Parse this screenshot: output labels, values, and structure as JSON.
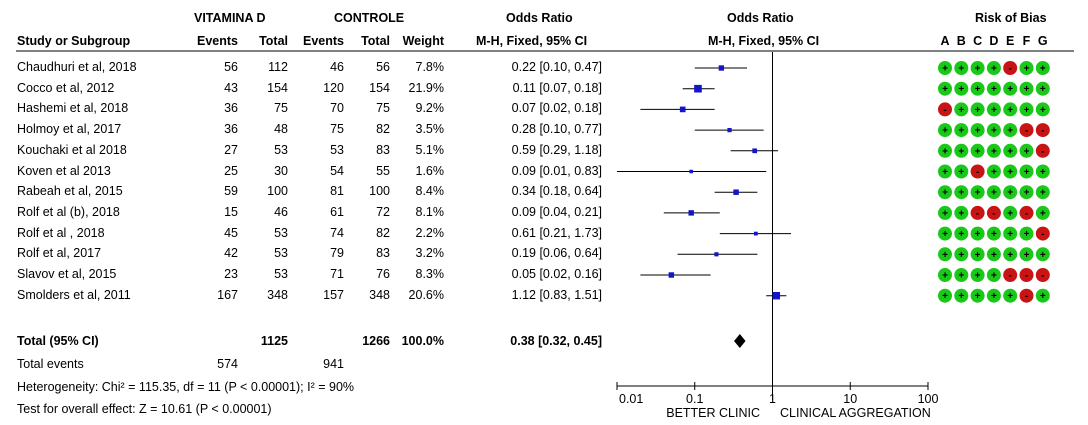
{
  "headers": {
    "group1": "VITAMINA D",
    "group2": "CONTROLE",
    "or_left": "Odds Ratio",
    "or_right": "Odds Ratio",
    "rob": "Risk of Bias",
    "study": "Study or Subgroup",
    "events1": "Events",
    "total1": "Total",
    "events2": "Events",
    "total2": "Total",
    "weight": "Weight",
    "method_left": "M-H, Fixed, 95% CI",
    "method_right": "M-H, Fixed, 95% CI",
    "rob_letters": [
      "A",
      "B",
      "C",
      "D",
      "E",
      "F",
      "G"
    ]
  },
  "studies": [
    {
      "name": "Chaudhuri et al, 2018",
      "e1": "56",
      "t1": "112",
      "e2": "46",
      "t2": "56",
      "weight": "7.8%",
      "ci_text": "0.22 [0.10, 0.47]",
      "or": 0.22,
      "lo": 0.1,
      "hi": 0.47,
      "w": 7.8,
      "rob": [
        "+",
        "+",
        "+",
        "+",
        "-",
        "+",
        "+"
      ]
    },
    {
      "name": "Cocco et al, 2012",
      "e1": "43",
      "t1": "154",
      "e2": "120",
      "t2": "154",
      "weight": "21.9%",
      "ci_text": "0.11 [0.07, 0.18]",
      "or": 0.11,
      "lo": 0.07,
      "hi": 0.18,
      "w": 21.9,
      "rob": [
        "+",
        "+",
        "+",
        "+",
        "+",
        "+",
        "+"
      ]
    },
    {
      "name": "Hashemi et al, 2018",
      "e1": "36",
      "t1": "75",
      "e2": "70",
      "t2": "75",
      "weight": "9.2%",
      "ci_text": "0.07 [0.02, 0.18]",
      "or": 0.07,
      "lo": 0.02,
      "hi": 0.18,
      "w": 9.2,
      "rob": [
        "-",
        "+",
        "+",
        "+",
        "+",
        "+",
        "+"
      ]
    },
    {
      "name": "Holmoy et al, 2017",
      "e1": "36",
      "t1": "48",
      "e2": "75",
      "t2": "82",
      "weight": "3.5%",
      "ci_text": "0.28 [0.10, 0.77]",
      "or": 0.28,
      "lo": 0.1,
      "hi": 0.77,
      "w": 3.5,
      "rob": [
        "+",
        "+",
        "+",
        "+",
        "+",
        "-",
        "-"
      ]
    },
    {
      "name": "Kouchaki et al  2018",
      "e1": "27",
      "t1": "53",
      "e2": "53",
      "t2": "83",
      "weight": "5.1%",
      "ci_text": "0.59 [0.29, 1.18]",
      "or": 0.59,
      "lo": 0.29,
      "hi": 1.18,
      "w": 5.1,
      "rob": [
        "+",
        "+",
        "+",
        "+",
        "+",
        "+",
        "-"
      ]
    },
    {
      "name": "Koven et al  2013",
      "e1": "25",
      "t1": "30",
      "e2": "54",
      "t2": "55",
      "weight": "1.6%",
      "ci_text": "0.09 [0.01, 0.83]",
      "or": 0.09,
      "lo": 0.01,
      "hi": 0.83,
      "w": 1.6,
      "rob": [
        "+",
        "+",
        "-",
        "+",
        "+",
        "+",
        "+"
      ]
    },
    {
      "name": "Rabeah  et al, 2015",
      "e1": "59",
      "t1": "100",
      "e2": "81",
      "t2": "100",
      "weight": "8.4%",
      "ci_text": "0.34 [0.18, 0.64]",
      "or": 0.34,
      "lo": 0.18,
      "hi": 0.64,
      "w": 8.4,
      "rob": [
        "+",
        "+",
        "+",
        "+",
        "+",
        "+",
        "+"
      ]
    },
    {
      "name": "Rolf et al (b), 2018",
      "e1": "15",
      "t1": "46",
      "e2": "61",
      "t2": "72",
      "weight": "8.1%",
      "ci_text": "0.09 [0.04, 0.21]",
      "or": 0.09,
      "lo": 0.04,
      "hi": 0.21,
      "w": 8.1,
      "rob": [
        "+",
        "+",
        "-",
        "-",
        "+",
        "-",
        "+"
      ]
    },
    {
      "name": "Rolf et al , 2018",
      "e1": "45",
      "t1": "53",
      "e2": "74",
      "t2": "82",
      "weight": "2.2%",
      "ci_text": "0.61 [0.21, 1.73]",
      "or": 0.61,
      "lo": 0.21,
      "hi": 1.73,
      "w": 2.2,
      "rob": [
        "+",
        "+",
        "+",
        "+",
        "+",
        "+",
        "-"
      ]
    },
    {
      "name": "Rolf et al, 2017",
      "e1": "42",
      "t1": "53",
      "e2": "79",
      "t2": "83",
      "weight": "3.2%",
      "ci_text": "0.19 [0.06, 0.64]",
      "or": 0.19,
      "lo": 0.06,
      "hi": 0.64,
      "w": 3.2,
      "rob": [
        "+",
        "+",
        "+",
        "+",
        "+",
        "+",
        "+"
      ]
    },
    {
      "name": "Slavov et al, 2015",
      "e1": "23",
      "t1": "53",
      "e2": "71",
      "t2": "76",
      "weight": "8.3%",
      "ci_text": "0.05 [0.02, 0.16]",
      "or": 0.05,
      "lo": 0.02,
      "hi": 0.16,
      "w": 8.3,
      "rob": [
        "+",
        "+",
        "+",
        "+",
        "-",
        "-",
        "-"
      ]
    },
    {
      "name": "Smolders et  al, 2011",
      "e1": "167",
      "t1": "348",
      "e2": "157",
      "t2": "348",
      "weight": "20.6%",
      "ci_text": "1.12 [0.83, 1.51]",
      "or": 1.12,
      "lo": 0.83,
      "hi": 1.51,
      "w": 20.6,
      "rob": [
        "+",
        "+",
        "+",
        "+",
        "+",
        "-",
        "+"
      ]
    }
  ],
  "total": {
    "label": "Total (95% CI)",
    "t1": "1125",
    "t2": "1266",
    "weight": "100.0%",
    "ci_text": "0.38 [0.32, 0.45]",
    "or": 0.38,
    "lo": 0.32,
    "hi": 0.45
  },
  "events": {
    "label": "Total events",
    "e1": "574",
    "e2": "941"
  },
  "heterogeneity": "Heterogeneity: Chi² = 115.35, df = 11 (P < 0.00001); I² = 90%",
  "overall_effect": "Test for overall effect: Z = 10.61 (P < 0.00001)",
  "axis": {
    "ticks": [
      0.01,
      0.1,
      1,
      10,
      100
    ],
    "tick_labels": [
      "0.01",
      "0.1",
      "1",
      "10",
      "100"
    ],
    "label_left": "BETTER CLINIC",
    "label_right": "CLINICAL AGGREGATION"
  },
  "colors": {
    "point": "#1414c8",
    "low_risk": "#19c819",
    "high_risk": "#c81414"
  },
  "chart_data": {
    "type": "forest",
    "scale": "log",
    "xlim": [
      0.01,
      100
    ],
    "studies": [
      "Chaudhuri et al, 2018",
      "Cocco et al, 2012",
      "Hashemi et al, 2018",
      "Holmoy et al, 2017",
      "Kouchaki et al  2018",
      "Koven et al  2013",
      "Rabeah  et al, 2015",
      "Rolf et al (b), 2018",
      "Rolf et al , 2018",
      "Rolf et al, 2017",
      "Slavov et al, 2015",
      "Smolders et  al, 2011"
    ],
    "odds_ratio": [
      0.22,
      0.11,
      0.07,
      0.28,
      0.59,
      0.09,
      0.34,
      0.09,
      0.61,
      0.19,
      0.05,
      1.12
    ],
    "ci_low": [
      0.1,
      0.07,
      0.02,
      0.1,
      0.29,
      0.01,
      0.18,
      0.04,
      0.21,
      0.06,
      0.02,
      0.83
    ],
    "ci_high": [
      0.47,
      0.18,
      0.18,
      0.77,
      1.18,
      0.83,
      0.64,
      0.21,
      1.73,
      0.64,
      0.16,
      1.51
    ],
    "weight_percent": [
      7.8,
      21.9,
      9.2,
      3.5,
      5.1,
      1.6,
      8.4,
      8.1,
      2.2,
      3.2,
      8.3,
      20.6
    ],
    "pooled": {
      "or": 0.38,
      "ci_low": 0.32,
      "ci_high": 0.45
    }
  }
}
